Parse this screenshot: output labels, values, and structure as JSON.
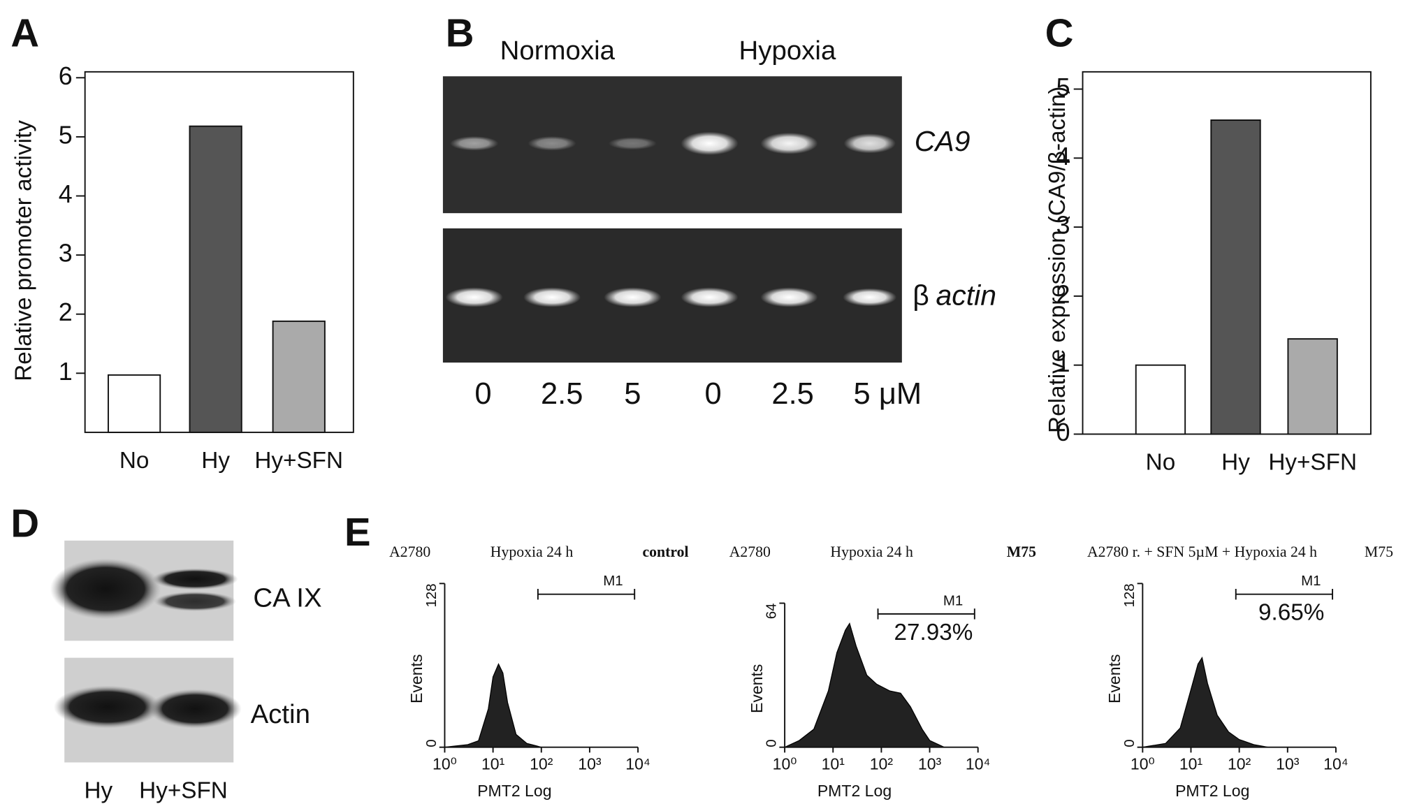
{
  "panels": [
    "A",
    "B",
    "C",
    "D",
    "E"
  ],
  "gel": {
    "groups": [
      "Normoxia",
      "Hypoxia"
    ],
    "lanes": [
      "0",
      "2.5",
      "5",
      "0",
      "2.5",
      "5 μM"
    ],
    "ca9": "CA9",
    "beta": "β",
    "actin": "actin"
  },
  "blot": {
    "labels": [
      "CA IX",
      "Actin"
    ],
    "lanes": [
      "Hy",
      "Hy+SFN"
    ]
  },
  "chart_data": [
    {
      "type": "bar",
      "categories": [
        "No",
        "Hy",
        "Hy+SFN"
      ],
      "values": [
        0.97,
        5.18,
        1.88
      ],
      "colors": [
        "#ffffff",
        "#555555",
        "#aaaaaa"
      ],
      "ylabel": "Relative promoter activity",
      "ylim": [
        0,
        6.1
      ],
      "yticks": [
        1,
        2,
        3,
        4,
        5,
        6
      ]
    },
    {
      "type": "bar",
      "categories": [
        "No",
        "Hy",
        "Hy+SFN"
      ],
      "values": [
        1.0,
        4.55,
        1.38
      ],
      "colors": [
        "#ffffff",
        "#555555",
        "#aaaaaa"
      ],
      "ylabel": "Relative expression (CA9/β-actin)",
      "ylim": [
        0,
        5.25
      ],
      "yticks": [
        0,
        1,
        2,
        3,
        4,
        5
      ]
    },
    {
      "type": "area",
      "header": [
        "A2780",
        "Hypoxia 24 h",
        "control"
      ],
      "x": [
        1,
        3,
        5,
        8,
        10,
        13,
        16,
        20,
        30,
        50,
        80,
        100
      ],
      "values": [
        0,
        2,
        5,
        30,
        55,
        65,
        58,
        35,
        10,
        3,
        1,
        0
      ],
      "color": "#222222",
      "log_x": true,
      "xlim": [
        1,
        10000
      ],
      "xticks": [
        {
          "value": 1,
          "label": "10⁰"
        },
        {
          "value": 10,
          "label": "10¹"
        },
        {
          "value": 100,
          "label": "10²"
        },
        {
          "value": 1000,
          "label": "10³"
        },
        {
          "value": 10000,
          "label": "10⁴"
        }
      ],
      "ylim": [
        0,
        128
      ],
      "yticks": [
        0,
        128
      ],
      "xlabel": "PMT2 Log",
      "ylabel": "Events",
      "gate": {
        "range": [
          85,
          8500
        ],
        "label": "M1"
      }
    },
    {
      "type": "area",
      "header": [
        "A2780",
        "Hypoxia 24 h",
        "M75"
      ],
      "x": [
        1,
        2,
        4,
        8,
        12,
        18,
        22,
        30,
        50,
        80,
        150,
        250,
        400,
        700,
        1000,
        2000
      ],
      "values": [
        0,
        3,
        8,
        25,
        42,
        52,
        55,
        45,
        32,
        28,
        25,
        24,
        18,
        8,
        3,
        0
      ],
      "color": "#222222",
      "log_x": true,
      "xlim": [
        1,
        10000
      ],
      "xticks": [
        {
          "value": 1,
          "label": "10⁰"
        },
        {
          "value": 10,
          "label": "10¹"
        },
        {
          "value": 100,
          "label": "10²"
        },
        {
          "value": 1000,
          "label": "10³"
        },
        {
          "value": 10000,
          "label": "10⁴"
        }
      ],
      "ylim": [
        0,
        64
      ],
      "yticks": [
        0,
        64
      ],
      "xlabel": "PMT2 Log",
      "ylabel": "Events",
      "gate": {
        "range": [
          85,
          8500
        ],
        "label": "M1",
        "percent": "27.93%"
      }
    },
    {
      "type": "area",
      "header": [
        "A2780 r. + SFN 5µM + Hypoxia 24 h",
        "M75"
      ],
      "x": [
        1,
        3,
        6,
        10,
        14,
        17,
        22,
        35,
        60,
        100,
        200,
        400
      ],
      "values": [
        0,
        3,
        15,
        45,
        65,
        70,
        50,
        25,
        12,
        6,
        2,
        0
      ],
      "color": "#222222",
      "log_x": true,
      "xlim": [
        1,
        10000
      ],
      "xticks": [
        {
          "value": 1,
          "label": "10⁰"
        },
        {
          "value": 10,
          "label": "10¹"
        },
        {
          "value": 100,
          "label": "10²"
        },
        {
          "value": 1000,
          "label": "10³"
        },
        {
          "value": 10000,
          "label": "10⁴"
        }
      ],
      "ylim": [
        0,
        128
      ],
      "yticks": [
        0,
        128
      ],
      "xlabel": "PMT2 Log",
      "ylabel": "Events",
      "gate": {
        "range": [
          85,
          8500
        ],
        "label": "M1",
        "percent": "9.65%"
      }
    }
  ]
}
